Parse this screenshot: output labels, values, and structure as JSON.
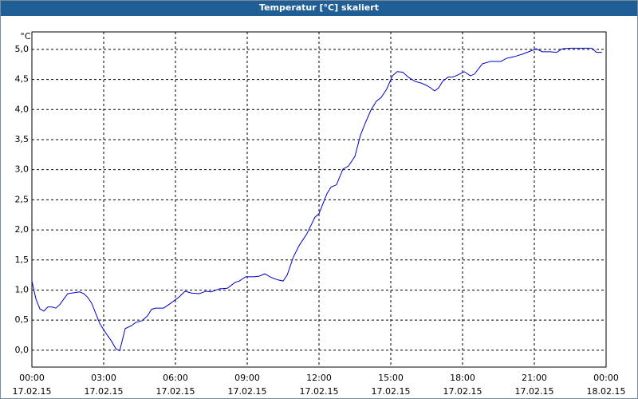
{
  "chart_data": {
    "type": "line",
    "title": "Temperatur [°C] skaliert",
    "y_unit": "°C",
    "x": [
      0,
      0.17,
      0.33,
      0.5,
      0.67,
      0.83,
      1,
      1.17,
      1.33,
      1.5,
      1.67,
      2,
      2.17,
      2.33,
      2.5,
      2.67,
      2.83,
      3,
      3.17,
      3.33,
      3.5,
      3.67,
      3.9,
      4.17,
      4.33,
      4.6,
      4.83,
      5,
      5.17,
      5.5,
      5.73,
      6,
      6.17,
      6.4,
      6.67,
      7,
      7.27,
      7.5,
      7.83,
      8.17,
      8.5,
      8.67,
      8.93,
      9.27,
      9.5,
      9.73,
      10,
      10.27,
      10.5,
      10.67,
      10.93,
      11.17,
      11.5,
      11.67,
      11.83,
      12,
      12.17,
      12.33,
      12.5,
      12.73,
      13,
      13.23,
      13.5,
      13.73,
      13.93,
      14.17,
      14.4,
      14.6,
      14.83,
      15.07,
      15.27,
      15.5,
      15.73,
      16,
      16.27,
      16.5,
      16.67,
      16.83,
      17,
      17.17,
      17.4,
      17.6,
      17.83,
      18.07,
      18.33,
      18.5,
      18.83,
      19.17,
      19.4,
      19.6,
      19.83,
      20.17,
      20.5,
      20.83,
      21.07,
      21.33,
      21.67,
      21.93,
      22.17,
      22.5,
      22.83,
      23.17,
      23.4,
      23.6,
      23.83
    ],
    "series": [
      {
        "color": "#0000cc",
        "values": [
          1.15,
          0.85,
          0.69,
          0.65,
          0.72,
          0.72,
          0.7,
          0.76,
          0.85,
          0.94,
          0.95,
          0.97,
          0.94,
          0.88,
          0.78,
          0.61,
          0.45,
          0.34,
          0.24,
          0.15,
          0.03,
          -0.01,
          0.36,
          0.41,
          0.46,
          0.49,
          0.57,
          0.68,
          0.7,
          0.7,
          0.76,
          0.84,
          0.89,
          0.98,
          0.95,
          0.94,
          0.98,
          0.97,
          1.02,
          1.03,
          1.13,
          1.15,
          1.22,
          1.22,
          1.23,
          1.27,
          1.21,
          1.17,
          1.15,
          1.25,
          1.55,
          1.74,
          1.94,
          2.08,
          2.21,
          2.27,
          2.44,
          2.6,
          2.71,
          2.75,
          3.01,
          3.06,
          3.22,
          3.57,
          3.77,
          3.99,
          4.14,
          4.2,
          4.34,
          4.56,
          4.63,
          4.62,
          4.54,
          4.47,
          4.44,
          4.4,
          4.36,
          4.31,
          4.36,
          4.47,
          4.54,
          4.54,
          4.58,
          4.63,
          4.56,
          4.59,
          4.76,
          4.8,
          4.8,
          4.8,
          4.85,
          4.88,
          4.92,
          4.97,
          5.01,
          4.96,
          4.96,
          4.95,
          5.01,
          5.02,
          5.02,
          5.02,
          5.02,
          4.95,
          4.95
        ]
      }
    ],
    "xlim": [
      0,
      24
    ],
    "ylim": [
      -0.28,
      5.29
    ],
    "xticks": [
      {
        "value": 0,
        "label": [
          "00:00",
          "17.02.15"
        ]
      },
      {
        "value": 3,
        "label": [
          "03:00",
          "17.02.15"
        ]
      },
      {
        "value": 6,
        "label": [
          "06:00",
          "17.02.15"
        ]
      },
      {
        "value": 9,
        "label": [
          "09:00",
          "17.02.15"
        ]
      },
      {
        "value": 12,
        "label": [
          "12:00",
          "17.02.15"
        ]
      },
      {
        "value": 15,
        "label": [
          "15:00",
          "17.02.15"
        ]
      },
      {
        "value": 18,
        "label": [
          "18:00",
          "17.02.15"
        ]
      },
      {
        "value": 21,
        "label": [
          "21:00",
          "17.02.15"
        ]
      },
      {
        "value": 24,
        "label": [
          "00:00",
          "18.02.15"
        ]
      }
    ],
    "yticks": [
      {
        "value": 0,
        "label": "0,0"
      },
      {
        "value": 0.5,
        "label": "0,5"
      },
      {
        "value": 1,
        "label": "1,0"
      },
      {
        "value": 1.5,
        "label": "1,5"
      },
      {
        "value": 2,
        "label": "2,0"
      },
      {
        "value": 2.5,
        "label": "2,5"
      },
      {
        "value": 3,
        "label": "3,0"
      },
      {
        "value": 3.5,
        "label": "3,5"
      },
      {
        "value": 4,
        "label": "4,0"
      },
      {
        "value": 4.5,
        "label": "4,5"
      },
      {
        "value": 5,
        "label": "5,0"
      }
    ],
    "grid": true
  }
}
